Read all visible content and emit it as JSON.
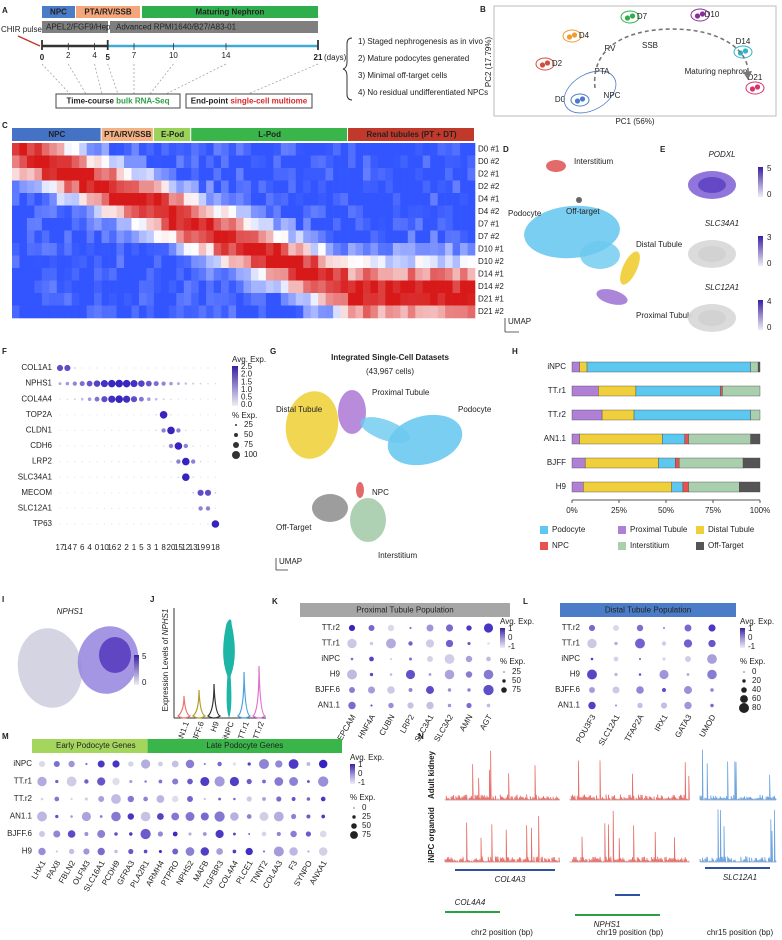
{
  "panels": {
    "A": {
      "letter": "A",
      "chir": "CHIR pulse",
      "stages": [
        "NPC",
        "PTA/RV/SSB",
        "Maturing Nephron"
      ],
      "media": [
        "APEL2/FGF9/Hep",
        "Advanced RPMI1640/B27/A83-01"
      ],
      "days": [
        0,
        2,
        4,
        5,
        7,
        10,
        14,
        21
      ],
      "days_unit": "(days)",
      "bulk": [
        "Time-course ",
        "bulk RNA-Seq"
      ],
      "endpoint": [
        "End-point ",
        "single-cell multiome"
      ],
      "outcomes": [
        "1) Staged nephrogenesis as in vivo",
        "2) Mature podocytes generated",
        "3) Minimal off-target cells",
        "4) No residual undifferentiated NPCs"
      ]
    },
    "B": {
      "letter": "B",
      "xlabel": "PC1 (56%)",
      "ylabel": "PC2 (17.79%)",
      "timepoints": [
        "D0",
        "D2",
        "D4",
        "D7",
        "D10",
        "D14",
        "D21"
      ],
      "stages": [
        "NPC",
        "PTA",
        "RV",
        "SSB",
        "Maturing nephron"
      ]
    },
    "C": {
      "letter": "C",
      "groups": [
        "NPC",
        "PTA/RV/SSB",
        "E-Pod",
        "L-Pod",
        "Renal tubules (PT + DT)"
      ],
      "samples": [
        "D0 #1",
        "D0 #2",
        "D2 #1",
        "D2 #2",
        "D4 #1",
        "D4 #2",
        "D7 #1",
        "D7 #2",
        "D10 #1",
        "D10 #2",
        "D14 #1",
        "D14 #2",
        "D21 #1",
        "D21 #2"
      ]
    },
    "D": {
      "letter": "D",
      "labels": [
        "Interstitium",
        "Podocyte",
        "Off-target",
        "Distal Tubule",
        "Proximal Tubule"
      ],
      "axis": "UMAP"
    },
    "E": {
      "letter": "E",
      "genes": [
        "PODXL",
        "SLC34A1",
        "SLC12A1"
      ],
      "scales": [
        [
          "5",
          "0"
        ],
        [
          "3",
          "0"
        ],
        [
          "4",
          "0"
        ]
      ]
    },
    "F": {
      "letter": "F",
      "genes": [
        "COL1A1",
        "NPHS1",
        "COL4A4",
        "TOP2A",
        "CLDN1",
        "CDH6",
        "LRP2",
        "SLC34A1",
        "MECOM",
        "SLC12A1",
        "TP63"
      ],
      "clusters": [
        "17",
        "14",
        "7",
        "6",
        "4",
        "0",
        "10",
        "16",
        "2",
        "2",
        "1",
        "5",
        "3",
        "1",
        "8",
        "20",
        "15",
        "12",
        "13",
        "19",
        "9",
        "18"
      ],
      "exp_title": "Avg. Exp.",
      "exp_ticks": [
        "2.5",
        "2.0",
        "1.5",
        "1.0",
        "0.5",
        "0.0"
      ],
      "pct_title": "% Exp.",
      "pct_ticks": [
        "25",
        "50",
        "75",
        "100"
      ]
    },
    "G": {
      "letter": "G",
      "title": "Integrated Single-Cell Datasets",
      "count": "(43,967 cells)",
      "labels": [
        "Proximal Tubule",
        "Distal Tubule",
        "Podocyte",
        "NPC",
        "Off-Target",
        "Interstitium"
      ],
      "axis": "UMAP"
    },
    "H": {
      "letter": "H"
    },
    "I": {
      "letter": "I",
      "gene": "NPHS1",
      "scale": [
        "5",
        "0"
      ]
    },
    "J": {
      "letter": "J",
      "ylabel": [
        "Expression Levels of ",
        "NPHS1"
      ],
      "samples": [
        "AN1.1",
        "BJFF.6",
        "H9",
        "iNPC",
        "TT.r1",
        "TT.r2"
      ],
      "colors": [
        "#e8756b",
        "#b49b2c",
        "#333333",
        "#1db5a6",
        "#4aa0e0",
        "#e070d0"
      ]
    },
    "K": {
      "letter": "K",
      "title": "Proximal Tubule Population",
      "rows": [
        "TT.r2",
        "TT.r1",
        "iNPC",
        "H9",
        "BJFF.6",
        "AN1.1"
      ],
      "genes": [
        "EPCAM",
        "HNF4A",
        "CUBN",
        "LRP2",
        "SLC3A1",
        "SLC3A2",
        "AMN",
        "AGT"
      ],
      "exp_title": "Avg. Exp.",
      "exp_ticks": [
        "1",
        "0",
        "-1"
      ],
      "pct_title": "% Exp.",
      "pct_ticks": [
        "25",
        "50",
        "75"
      ]
    },
    "L": {
      "letter": "L",
      "title": "Distal Tubule Population",
      "rows": [
        "TT.r2",
        "TT.r1",
        "iNPC",
        "H9",
        "BJFF.6",
        "AN1.1"
      ],
      "genes": [
        "POU3F3",
        "SLC12A1",
        "TFAP2A",
        "IRX1",
        "GATA3",
        "UMOD"
      ],
      "exp_title": "Avg. Exp.",
      "exp_ticks": [
        "1",
        "0",
        "-1"
      ],
      "pct_title": "% Exp.",
      "pct_ticks": [
        "0",
        "20",
        "40",
        "60",
        "80"
      ]
    },
    "M": {
      "letter": "M",
      "groups": [
        "Early Podocyte Genes",
        "Late Podocyte Genes"
      ],
      "rows": [
        "iNPC",
        "TT.r1",
        "TT.r2",
        "AN1.1",
        "BJFF.6",
        "H9"
      ],
      "early_genes": [
        "LHX1",
        "PAX8",
        "FBLN2",
        "OLFM3",
        "SLC16A1",
        "PCDH9",
        "GFRA3"
      ],
      "late_genes": [
        "PLA2R1",
        "ARMH4",
        "PTPRO",
        "NPHS2",
        "MAFB",
        "TGFBR3",
        "COL4A4",
        "PLCE1",
        "TNNT2",
        "COL4A3",
        "F3",
        "SYNPO",
        "ANXA1"
      ],
      "exp_title": "Avg. Exp.",
      "exp_ticks": [
        "1",
        "0",
        "-1"
      ],
      "pct_title": "% Exp.",
      "pct_ticks": [
        "0",
        "25",
        "50",
        "75"
      ]
    },
    "N": {
      "letter": "N",
      "tracks": [
        "Adult kidney",
        "iNPC organoid"
      ],
      "genes": [
        "COL4A3",
        "COL4A4",
        "NPHS1",
        "SLC12A1"
      ],
      "axes": [
        "chr2 position (bp)",
        "chr19 position (bp)",
        "chr15 position (bp)"
      ]
    }
  },
  "chart_data": {
    "type": "bar",
    "orientation": "horizontal",
    "stacked": true,
    "categories": [
      "iNPC",
      "TT.r1",
      "TT.r2",
      "AN1.1",
      "BJFF",
      "H9"
    ],
    "series": [
      {
        "name": "Podocyte",
        "color": "#5cc8ef",
        "values": [
          87,
          45,
          62,
          12,
          9,
          6
        ]
      },
      {
        "name": "Proximal Tubule",
        "color": "#b07fd6",
        "values": [
          4,
          14,
          16,
          4,
          7,
          6
        ]
      },
      {
        "name": "Distal Tubule",
        "color": "#f0cf3c",
        "values": [
          4,
          20,
          17,
          44,
          39,
          47
        ]
      },
      {
        "name": "NPC",
        "color": "#e8514f",
        "values": [
          0,
          1,
          0,
          2,
          2,
          3
        ]
      },
      {
        "name": "Interstitium",
        "color": "#a9cfae",
        "values": [
          4,
          20,
          5,
          33,
          34,
          27
        ]
      },
      {
        "name": "Off-Target",
        "color": "#555555",
        "values": [
          1,
          0,
          0,
          5,
          9,
          11
        ]
      }
    ],
    "xlim": [
      0,
      100
    ],
    "xticks": [
      {
        "value": 0,
        "label": "0%"
      },
      {
        "value": 25,
        "label": "25%"
      },
      {
        "value": 50,
        "label": "50%"
      },
      {
        "value": 75,
        "label": "75%"
      },
      {
        "value": 100,
        "label": "100%"
      }
    ]
  }
}
